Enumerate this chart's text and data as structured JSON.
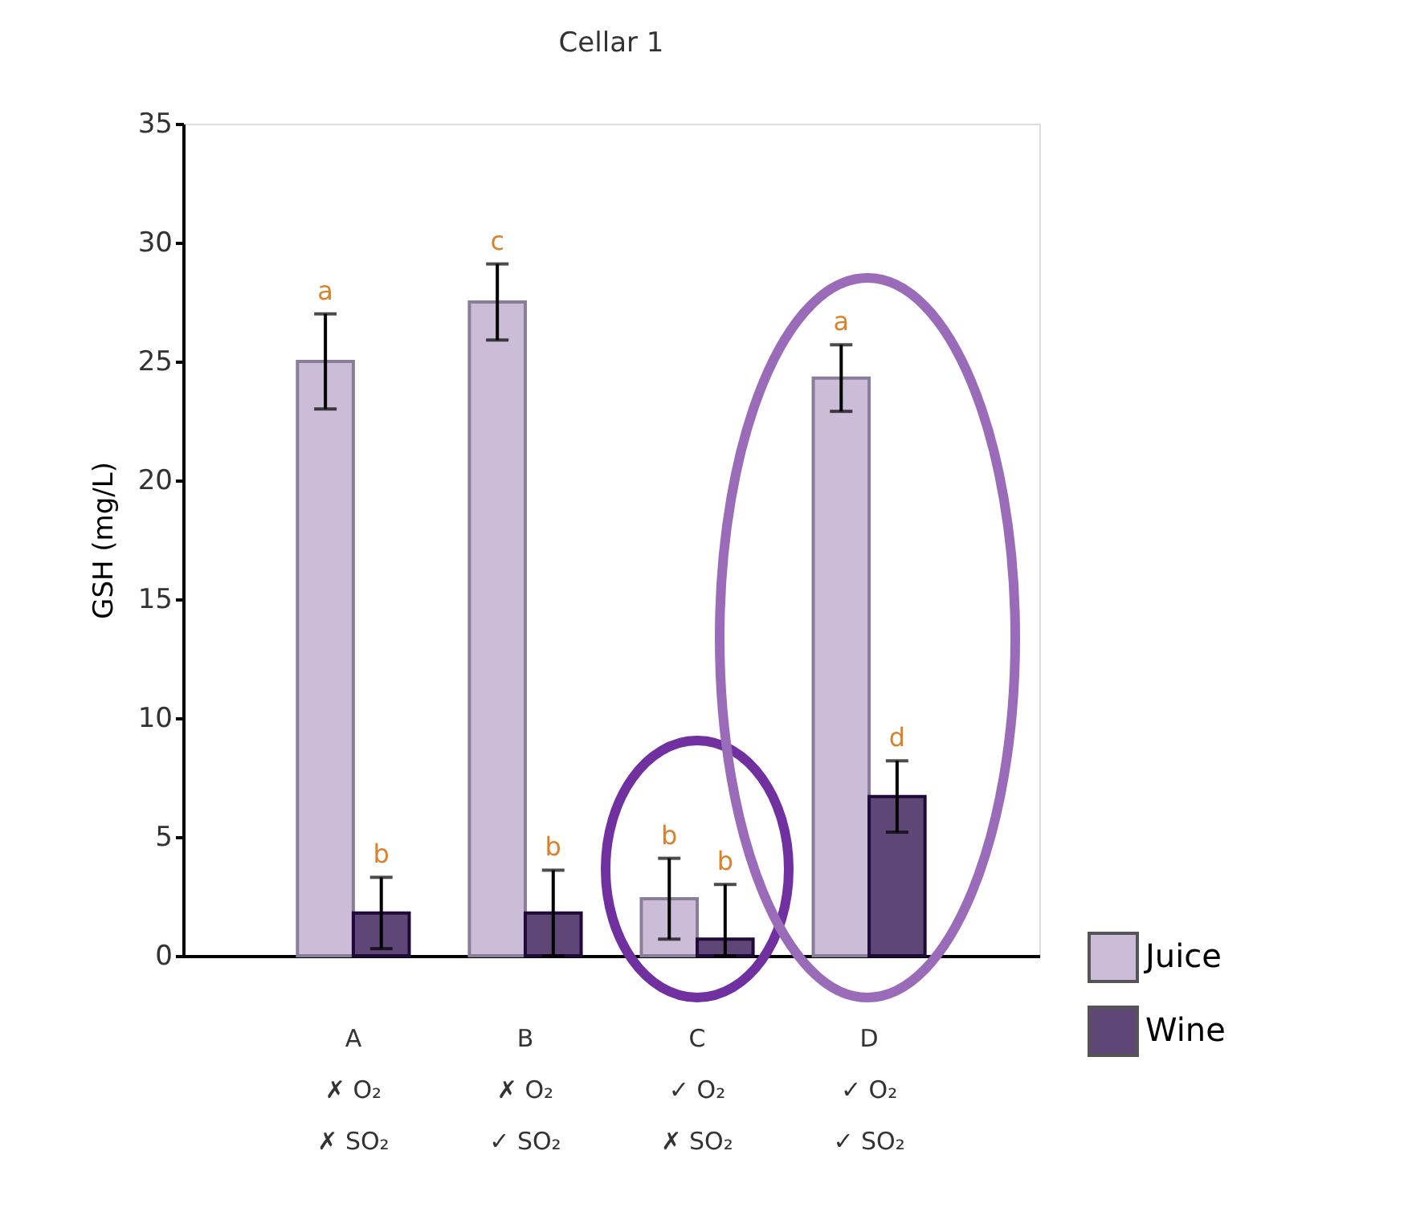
{
  "chart_data": {
    "type": "bar",
    "title": "Cellar 1",
    "ylabel": "GSH (mg/L)",
    "categories": [
      "A\n✗ O₂\n✗ SO₂",
      "B\n✗ O₂\n✓ SO₂",
      "C\n✓ O₂\n✗ SO₂",
      "D\n✓ O₂\n✓ SO₂"
    ],
    "series": [
      {
        "name": "Juice",
        "color": "#cbbdd8",
        "values": [
          25,
          27.5,
          2.4,
          24.3
        ],
        "errors": [
          2,
          1.6,
          1.7,
          1.4
        ]
      },
      {
        "name": "Wine",
        "color": "#5e4677",
        "values": [
          1.8,
          1.8,
          0.7,
          6.7
        ],
        "errors": [
          1.5,
          1.8,
          [
            0,
            3.0
          ],
          1.5
        ]
      }
    ],
    "ylim": [
      0,
      35
    ],
    "yticks": [
      0,
      5,
      10,
      15,
      20,
      25,
      30,
      35
    ],
    "grid": false,
    "legend": "bottom right",
    "annotations": [
      "a",
      "b",
      "c",
      "b",
      "b",
      "b",
      "a",
      "d"
    ]
  }
}
